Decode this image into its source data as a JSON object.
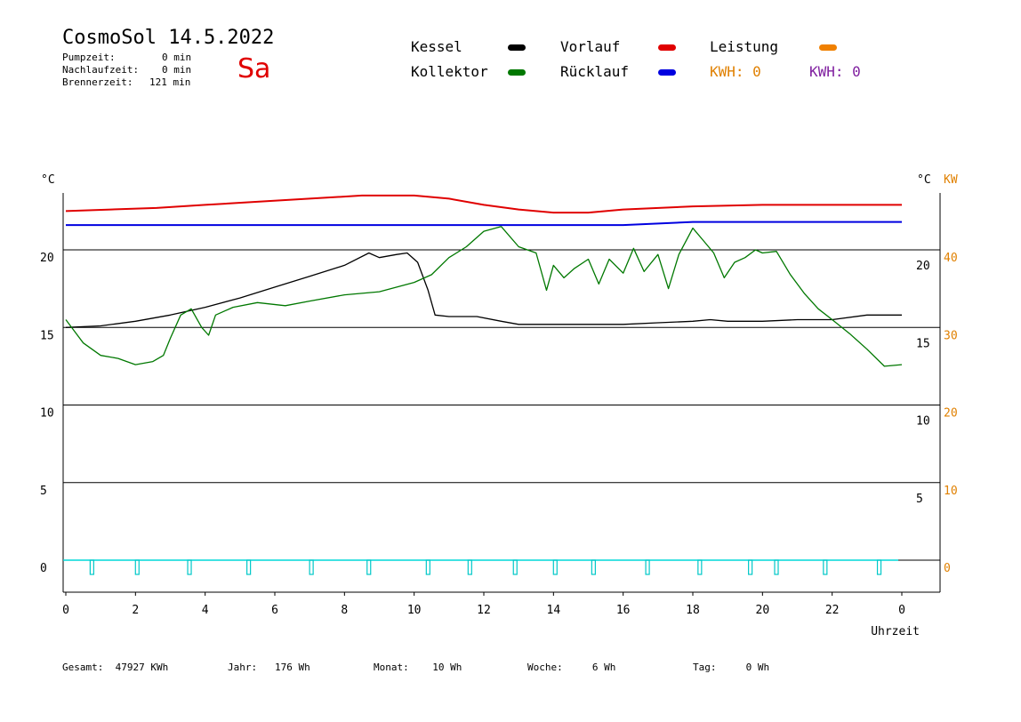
{
  "header": {
    "title": "CosmoSol 14.5.2022",
    "day": "Sa",
    "info": [
      {
        "label": "Pumpzeit:",
        "value": "0 min"
      },
      {
        "label": "Nachlaufzeit:",
        "value": "0 min"
      },
      {
        "label": "Brennerzeit:",
        "value": "121 min"
      }
    ]
  },
  "legend": {
    "kessel": {
      "label": "Kessel",
      "color": "#000000"
    },
    "kollektor": {
      "label": "Kollektor",
      "color": "#007800"
    },
    "vorlauf": {
      "label": "Vorlauf",
      "color": "#e00000"
    },
    "ruecklauf": {
      "label": "Rücklauf",
      "color": "#0000e0"
    },
    "leistung": {
      "label": "Leistung",
      "color": "#f08000"
    },
    "kwh_orange": {
      "label": "KWH: 0",
      "color": "#e08000"
    },
    "kwh_purple": {
      "label": "KWH: 0",
      "color": "#8020a0"
    }
  },
  "footer": {
    "gesamt": "Gesamt:  47927 KWh",
    "jahr": "Jahr:   176 Wh",
    "monat": "Monat:    10 Wh",
    "woche": "Woche:     6 Wh",
    "tag": "Tag:     0 Wh"
  },
  "chart_data": {
    "type": "line",
    "x_unit": "Uhrzeit",
    "xlabel": "Uhrzeit",
    "x_range": [
      0,
      24
    ],
    "x_ticks": [
      "0",
      "2",
      "4",
      "6",
      "8",
      "10",
      "12",
      "14",
      "16",
      "18",
      "20",
      "22",
      "0"
    ],
    "y_left_label": "°C",
    "y_left_ticks": [
      "0",
      "5",
      "10",
      "15",
      "20"
    ],
    "y_left_range": [
      -2,
      25
    ],
    "y_right_label": "°C",
    "y_right_ticks": [
      "5",
      "10",
      "15",
      "20"
    ],
    "y_right2_label": "KW",
    "y_right2_ticks": [
      "0",
      "10",
      "20",
      "30",
      "40"
    ],
    "grid": "horizontal",
    "series": [
      {
        "name": "Vorlauf",
        "color": "#e00000",
        "x": [
          0,
          1.3,
          2.6,
          4,
          5.5,
          7,
          8.5,
          10,
          11,
          12,
          13,
          14,
          15,
          16,
          18,
          20,
          22,
          24
        ],
        "y": [
          22.5,
          22.6,
          22.7,
          22.9,
          23.1,
          23.3,
          23.5,
          23.5,
          23.3,
          22.9,
          22.6,
          22.4,
          22.4,
          22.6,
          22.8,
          22.9,
          22.9,
          22.9
        ]
      },
      {
        "name": "Rücklauf",
        "color": "#0000e0",
        "x": [
          0,
          4,
          8,
          10,
          12,
          14,
          16,
          18,
          20,
          22,
          24
        ],
        "y": [
          21.6,
          21.6,
          21.6,
          21.6,
          21.6,
          21.6,
          21.6,
          21.8,
          21.8,
          21.8,
          21.8
        ]
      },
      {
        "name": "Kessel",
        "color": "#000000",
        "x": [
          0,
          1,
          2,
          3,
          4,
          5,
          6,
          7,
          8,
          8.7,
          9,
          9.5,
          9.8,
          10.1,
          10.4,
          10.6,
          11,
          11.8,
          12.5,
          13,
          14,
          15,
          16,
          17,
          18,
          18.5,
          19,
          20,
          21,
          22,
          23,
          24
        ],
        "y": [
          15,
          15.1,
          15.4,
          15.8,
          16.3,
          16.9,
          17.6,
          18.3,
          19,
          19.8,
          19.5,
          19.7,
          19.8,
          19.2,
          17.4,
          15.8,
          15.7,
          15.7,
          15.4,
          15.2,
          15.2,
          15.2,
          15.2,
          15.3,
          15.4,
          15.5,
          15.4,
          15.4,
          15.5,
          15.5,
          15.8,
          15.8
        ]
      },
      {
        "name": "Kollektor",
        "color": "#007800",
        "x": [
          0,
          0.5,
          1,
          1.5,
          2,
          2.5,
          2.8,
          3,
          3.3,
          3.6,
          3.9,
          4.1,
          4.3,
          4.8,
          5.5,
          6.3,
          7,
          8,
          9,
          9.5,
          10,
          10.5,
          11,
          11.5,
          12,
          12.5,
          13,
          13.5,
          13.8,
          14,
          14.3,
          14.6,
          15,
          15.3,
          15.6,
          16,
          16.3,
          16.6,
          17,
          17.3,
          17.6,
          18,
          18.3,
          18.6,
          18.9,
          19.2,
          19.5,
          19.8,
          20,
          20.4,
          20.8,
          21.2,
          21.6,
          22,
          22.5,
          23,
          23.5,
          24
        ],
        "y": [
          15.5,
          14,
          13.2,
          13,
          12.6,
          12.8,
          13.2,
          14.3,
          15.8,
          16.2,
          15,
          14.5,
          15.8,
          16.3,
          16.6,
          16.4,
          16.7,
          17.1,
          17.3,
          17.6,
          17.9,
          18.4,
          19.5,
          20.2,
          21.2,
          21.5,
          20.2,
          19.8,
          17.4,
          19,
          18.2,
          18.8,
          19.4,
          17.8,
          19.4,
          18.5,
          20.1,
          18.6,
          19.7,
          17.5,
          19.7,
          21.4,
          20.6,
          19.8,
          18.2,
          19.2,
          19.5,
          20,
          19.8,
          19.9,
          18.4,
          17.2,
          16.2,
          15.5,
          14.6,
          13.6,
          12.5,
          12.6
        ]
      }
    ],
    "pump_pulses_x": [
      0.75,
      2.05,
      3.55,
      5.25,
      7.05,
      8.7,
      10.4,
      11.6,
      12.9,
      14.05,
      15.15,
      16.7,
      18.2,
      19.65,
      20.4,
      21.8,
      23.35
    ]
  }
}
